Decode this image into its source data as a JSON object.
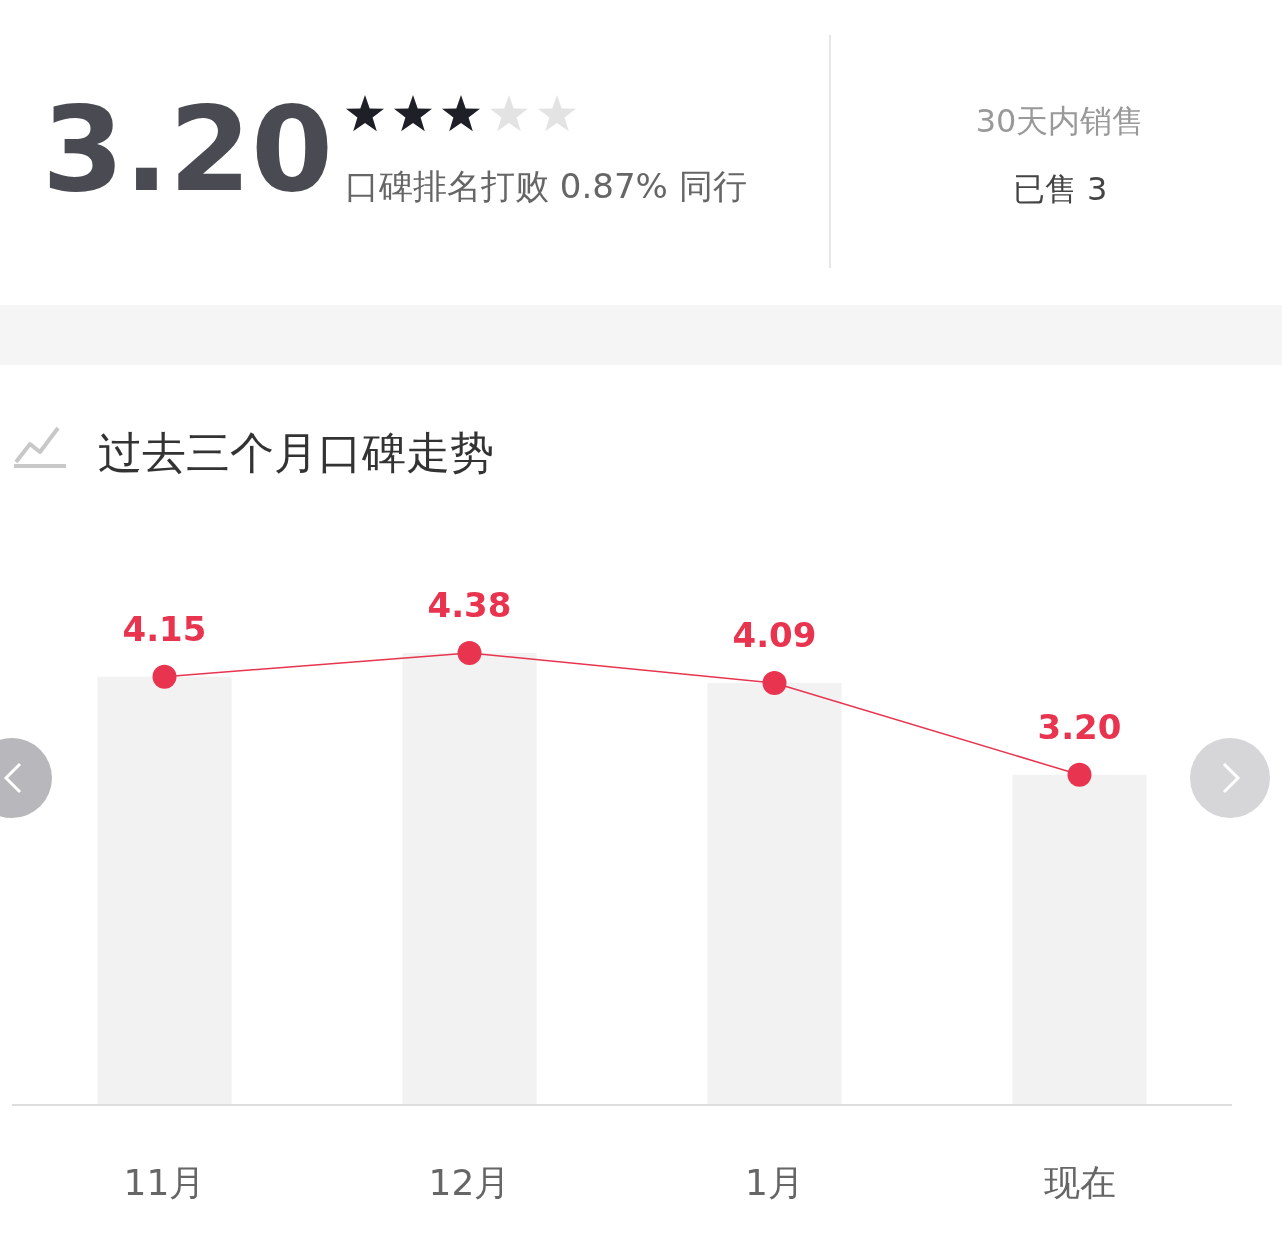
{
  "chart_data": [
    {
      "type": "other",
      "title": "3.20",
      "annotations": [
        "口碑排名打败 0.87% 同行",
        "30天内销售",
        "已售 3"
      ]
    },
    {
      "type": "bar",
      "title": "过去三个月口碑走势",
      "categories": [
        "11月",
        "12月",
        "1月",
        "现在"
      ],
      "marker": "circle",
      "series": [
        {
          "type": "bar",
          "color": "#f2f2f2",
          "values": [
            4.15,
            4.38,
            4.09,
            3.2
          ]
        },
        {
          "type": "line",
          "color": "#e8344e",
          "values": [
            4.15,
            4.38,
            4.09,
            3.2
          ],
          "value_labels": [
            "4.15",
            "4.38",
            "4.09",
            "3.20"
          ]
        }
      ]
    }
  ]
}
